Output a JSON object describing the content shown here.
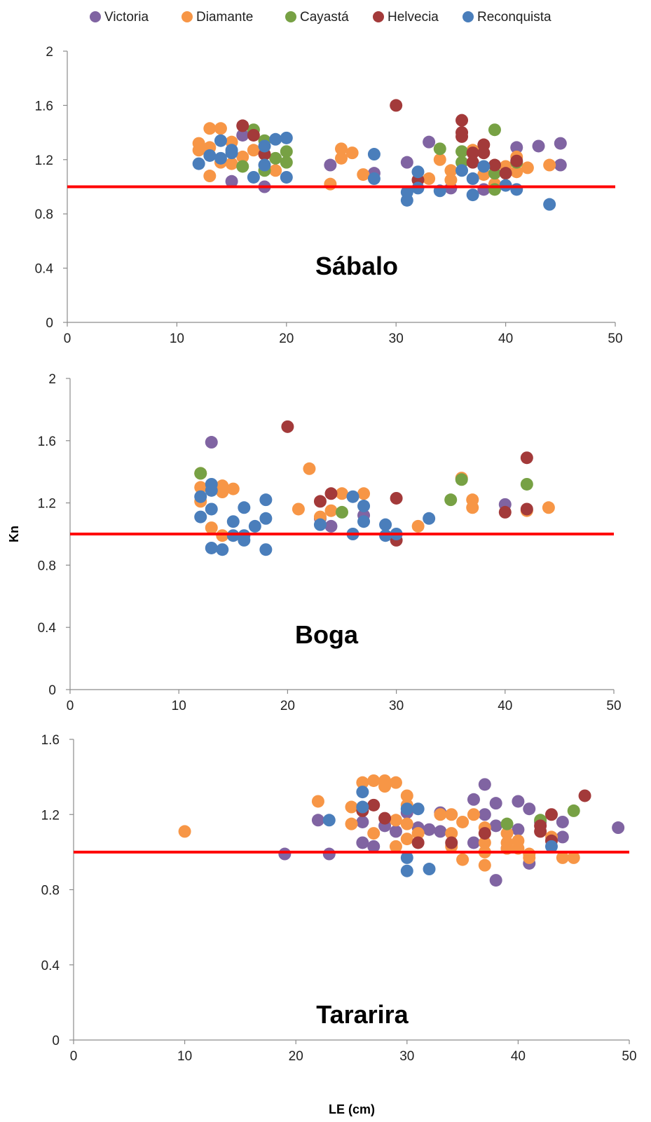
{
  "legend": [
    {
      "name": "Victoria",
      "color": "#8064A2"
    },
    {
      "name": "Diamante",
      "color": "#F79646"
    },
    {
      "name": "Cayastá",
      "color": "#77A144"
    },
    {
      "name": "Helvecia",
      "color": "#A33A3A"
    },
    {
      "name": "Reconquista",
      "color": "#4A7EBB"
    }
  ],
  "reference_line": {
    "y": 1.0,
    "color": "#FF0000"
  },
  "ylabel": "Kn",
  "xlabel": "LE (cm)",
  "chart_data": [
    {
      "type": "scatter",
      "title": "Sábalo",
      "xlim": [
        0,
        50
      ],
      "ylim": [
        0,
        2
      ],
      "xticks": [
        "0",
        "10",
        "20",
        "30",
        "40",
        "50"
      ],
      "yticks": [
        "0",
        "0.4",
        "0.8",
        "1.2",
        "1.6",
        "2"
      ],
      "series": [
        {
          "name": "Victoria",
          "points": [
            [
              15,
              1.04
            ],
            [
              16,
              1.38
            ],
            [
              18,
              1.0
            ],
            [
              24,
              1.16
            ],
            [
              28,
              1.1
            ],
            [
              31,
              1.18
            ],
            [
              33,
              1.33
            ],
            [
              35,
              0.99
            ],
            [
              38,
              0.98
            ],
            [
              41,
              1.29
            ],
            [
              43,
              1.3
            ],
            [
              45,
              1.32
            ],
            [
              45,
              1.16
            ]
          ]
        },
        {
          "name": "Diamante",
          "points": [
            [
              12,
              1.32
            ],
            [
              12,
              1.27
            ],
            [
              13,
              1.43
            ],
            [
              13,
              1.29
            ],
            [
              13,
              1.08
            ],
            [
              14,
              1.43
            ],
            [
              14,
              1.18
            ],
            [
              15,
              1.33
            ],
            [
              15,
              1.17
            ],
            [
              16,
              1.22
            ],
            [
              17,
              1.27
            ],
            [
              19,
              1.12
            ],
            [
              24,
              1.02
            ],
            [
              25,
              1.28
            ],
            [
              25,
              1.21
            ],
            [
              26,
              1.25
            ],
            [
              27,
              1.09
            ],
            [
              33,
              1.06
            ],
            [
              34,
              1.2
            ],
            [
              35,
              1.12
            ],
            [
              35,
              1.05
            ],
            [
              37,
              1.27
            ],
            [
              38,
              1.09
            ],
            [
              39,
              1.02
            ],
            [
              40,
              1.15
            ],
            [
              41,
              1.22
            ],
            [
              41,
              1.11
            ],
            [
              42,
              1.14
            ],
            [
              44,
              1.16
            ]
          ]
        },
        {
          "name": "Cayastá",
          "points": [
            [
              16,
              1.15
            ],
            [
              17,
              1.42
            ],
            [
              18,
              1.34
            ],
            [
              18,
              1.12
            ],
            [
              19,
              1.21
            ],
            [
              20,
              1.26
            ],
            [
              20,
              1.18
            ],
            [
              34,
              1.28
            ],
            [
              36,
              1.26
            ],
            [
              36,
              1.18
            ],
            [
              39,
              1.42
            ],
            [
              39,
              1.1
            ],
            [
              39,
              0.98
            ],
            [
              41,
              1.18
            ]
          ]
        },
        {
          "name": "Helvecia",
          "points": [
            [
              16,
              1.45
            ],
            [
              17,
              1.38
            ],
            [
              18,
              1.24
            ],
            [
              30,
              1.6
            ],
            [
              32,
              1.05
            ],
            [
              36,
              1.49
            ],
            [
              36,
              1.4
            ],
            [
              36,
              1.37
            ],
            [
              37,
              1.25
            ],
            [
              37,
              1.18
            ],
            [
              38,
              1.31
            ],
            [
              38,
              1.25
            ],
            [
              39,
              1.16
            ],
            [
              40,
              1.1
            ],
            [
              41,
              1.19
            ]
          ]
        },
        {
          "name": "Reconquista",
          "points": [
            [
              12,
              1.17
            ],
            [
              13,
              1.23
            ],
            [
              14,
              1.34
            ],
            [
              14,
              1.21
            ],
            [
              15,
              1.25
            ],
            [
              15,
              1.27
            ],
            [
              17,
              1.07
            ],
            [
              18,
              1.3
            ],
            [
              18,
              1.16
            ],
            [
              19,
              1.35
            ],
            [
              20,
              1.36
            ],
            [
              20,
              1.07
            ],
            [
              28,
              1.24
            ],
            [
              28,
              1.06
            ],
            [
              31,
              0.96
            ],
            [
              31,
              0.9
            ],
            [
              32,
              1.11
            ],
            [
              32,
              0.99
            ],
            [
              34,
              0.97
            ],
            [
              36,
              1.12
            ],
            [
              37,
              1.06
            ],
            [
              37,
              0.94
            ],
            [
              38,
              1.15
            ],
            [
              40,
              1.01
            ],
            [
              41,
              0.98
            ],
            [
              44,
              0.87
            ]
          ]
        }
      ]
    },
    {
      "type": "scatter",
      "title": "Boga",
      "xlim": [
        0,
        50
      ],
      "ylim": [
        0,
        2
      ],
      "xticks": [
        "0",
        "10",
        "20",
        "30",
        "40",
        "50"
      ],
      "yticks": [
        "0",
        "0.4",
        "0.8",
        "1.2",
        "1.6",
        "2"
      ],
      "series": [
        {
          "name": "Victoria",
          "points": [
            [
              13,
              1.59
            ],
            [
              23,
              1.1
            ],
            [
              24,
              1.05
            ],
            [
              27,
              1.12
            ],
            [
              40,
              1.19
            ]
          ]
        },
        {
          "name": "Diamante",
          "points": [
            [
              12,
              1.39
            ],
            [
              12,
              1.3
            ],
            [
              12,
              1.21
            ],
            [
              13,
              1.04
            ],
            [
              14,
              1.31
            ],
            [
              14,
              1.27
            ],
            [
              14,
              0.99
            ],
            [
              15,
              1.29
            ],
            [
              21,
              1.16
            ],
            [
              22,
              1.42
            ],
            [
              23,
              1.11
            ],
            [
              24,
              1.15
            ],
            [
              25,
              1.26
            ],
            [
              27,
              1.26
            ],
            [
              32,
              1.05
            ],
            [
              36,
              1.36
            ],
            [
              37,
              1.22
            ],
            [
              37,
              1.17
            ],
            [
              42,
              1.15
            ],
            [
              44,
              1.17
            ]
          ]
        },
        {
          "name": "Cayastá",
          "points": [
            [
              12,
              1.39
            ],
            [
              25,
              1.14
            ],
            [
              35,
              1.22
            ],
            [
              36,
              1.35
            ],
            [
              42,
              1.32
            ]
          ]
        },
        {
          "name": "Helvecia",
          "points": [
            [
              20,
              1.69
            ],
            [
              23,
              1.21
            ],
            [
              24,
              1.26
            ],
            [
              30,
              1.23
            ],
            [
              30,
              0.96
            ],
            [
              40,
              1.14
            ],
            [
              42,
              1.49
            ],
            [
              42,
              1.16
            ]
          ]
        },
        {
          "name": "Reconquista",
          "points": [
            [
              12,
              1.24
            ],
            [
              12,
              1.11
            ],
            [
              13,
              1.32
            ],
            [
              13,
              1.28
            ],
            [
              13,
              1.16
            ],
            [
              13,
              0.91
            ],
            [
              14,
              0.9
            ],
            [
              15,
              1.08
            ],
            [
              15,
              0.99
            ],
            [
              16,
              1.17
            ],
            [
              16,
              0.99
            ],
            [
              16,
              0.96
            ],
            [
              17,
              1.05
            ],
            [
              18,
              1.22
            ],
            [
              18,
              1.1
            ],
            [
              18,
              0.9
            ],
            [
              23,
              1.06
            ],
            [
              26,
              1.24
            ],
            [
              26,
              1.0
            ],
            [
              27,
              1.18
            ],
            [
              27,
              1.08
            ],
            [
              29,
              1.06
            ],
            [
              29,
              0.99
            ],
            [
              30,
              1.0
            ],
            [
              33,
              1.1
            ]
          ]
        }
      ]
    },
    {
      "type": "scatter",
      "title": "Tararira",
      "xlim": [
        0,
        50
      ],
      "ylim": [
        0,
        1.6
      ],
      "xticks": [
        "0",
        "10",
        "20",
        "30",
        "40",
        "50"
      ],
      "yticks": [
        "0",
        "0.4",
        "0.8",
        "1.2",
        "1.6"
      ],
      "series": [
        {
          "name": "Victoria",
          "points": [
            [
              19,
              0.99
            ],
            [
              22,
              1.17
            ],
            [
              23,
              0.99
            ],
            [
              26,
              1.16
            ],
            [
              26,
              1.05
            ],
            [
              27,
              1.03
            ],
            [
              28,
              1.14
            ],
            [
              29,
              1.11
            ],
            [
              30,
              1.21
            ],
            [
              31,
              1.13
            ],
            [
              32,
              1.12
            ],
            [
              33,
              1.21
            ],
            [
              33,
              1.11
            ],
            [
              36,
              1.28
            ],
            [
              36,
              1.05
            ],
            [
              37,
              1.36
            ],
            [
              37,
              1.2
            ],
            [
              38,
              1.26
            ],
            [
              38,
              1.14
            ],
            [
              38,
              0.85
            ],
            [
              39,
              1.02
            ],
            [
              40,
              1.27
            ],
            [
              40,
              1.12
            ],
            [
              41,
              1.23
            ],
            [
              41,
              0.94
            ],
            [
              42,
              1.16
            ],
            [
              44,
              1.16
            ],
            [
              44,
              1.08
            ],
            [
              49,
              1.13
            ]
          ]
        },
        {
          "name": "Diamante",
          "points": [
            [
              10,
              1.11
            ],
            [
              22,
              1.27
            ],
            [
              25,
              1.24
            ],
            [
              25,
              1.15
            ],
            [
              26,
              1.37
            ],
            [
              27,
              1.38
            ],
            [
              27,
              1.1
            ],
            [
              28,
              1.38
            ],
            [
              28,
              1.35
            ],
            [
              29,
              1.37
            ],
            [
              29,
              1.17
            ],
            [
              29,
              1.03
            ],
            [
              30,
              1.3
            ],
            [
              30,
              1.25
            ],
            [
              30,
              1.15
            ],
            [
              30,
              1.07
            ],
            [
              31,
              1.1
            ],
            [
              33,
              1.2
            ],
            [
              34,
              1.2
            ],
            [
              34,
              1.1
            ],
            [
              34,
              1.03
            ],
            [
              35,
              1.16
            ],
            [
              35,
              0.96
            ],
            [
              36,
              1.2
            ],
            [
              37,
              1.13
            ],
            [
              37,
              1.05
            ],
            [
              37,
              1.0
            ],
            [
              37,
              0.93
            ],
            [
              39,
              1.1
            ],
            [
              39,
              1.05
            ],
            [
              39,
              1.02
            ],
            [
              40,
              1.06
            ],
            [
              40,
              1.02
            ],
            [
              41,
              0.99
            ],
            [
              41,
              0.97
            ],
            [
              43,
              1.08
            ],
            [
              44,
              0.97
            ],
            [
              45,
              0.97
            ]
          ]
        },
        {
          "name": "Cayastá",
          "points": [
            [
              39,
              1.15
            ],
            [
              42,
              1.17
            ],
            [
              45,
              1.22
            ]
          ]
        },
        {
          "name": "Helvecia",
          "points": [
            [
              26,
              1.22
            ],
            [
              27,
              1.25
            ],
            [
              28,
              1.18
            ],
            [
              31,
              1.05
            ],
            [
              34,
              1.05
            ],
            [
              37,
              1.1
            ],
            [
              42,
              1.14
            ],
            [
              42,
              1.11
            ],
            [
              43,
              1.2
            ],
            [
              43,
              1.06
            ],
            [
              46,
              1.3
            ]
          ]
        },
        {
          "name": "Reconquista",
          "points": [
            [
              23,
              1.17
            ],
            [
              26,
              1.32
            ],
            [
              26,
              1.24
            ],
            [
              30,
              1.23
            ],
            [
              30,
              0.97
            ],
            [
              30,
              0.9
            ],
            [
              31,
              1.23
            ],
            [
              32,
              0.91
            ],
            [
              43,
              1.03
            ]
          ]
        }
      ]
    }
  ]
}
